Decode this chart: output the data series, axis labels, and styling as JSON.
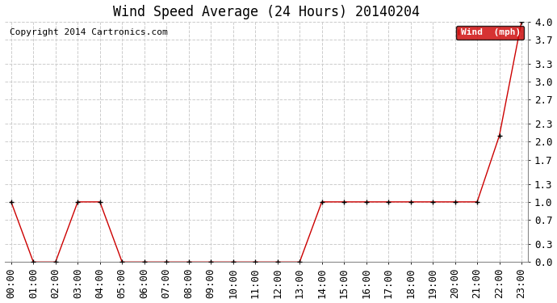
{
  "title": "Wind Speed Average (24 Hours) 20140204",
  "copyright": "Copyright 2014 Cartronics.com",
  "legend_label": "Wind  (mph)",
  "x_labels": [
    "00:00",
    "01:00",
    "02:00",
    "03:00",
    "04:00",
    "05:00",
    "06:00",
    "07:00",
    "08:00",
    "09:00",
    "10:00",
    "11:00",
    "12:00",
    "13:00",
    "14:00",
    "15:00",
    "16:00",
    "17:00",
    "18:00",
    "19:00",
    "20:00",
    "21:00",
    "22:00",
    "23:00"
  ],
  "y_values": [
    1.0,
    0.0,
    0.0,
    1.0,
    1.0,
    0.0,
    0.0,
    0.0,
    0.0,
    0.0,
    0.0,
    0.0,
    0.0,
    0.0,
    1.0,
    1.0,
    1.0,
    1.0,
    1.0,
    1.0,
    1.0,
    1.0,
    2.1,
    4.0
  ],
  "ylim": [
    0.0,
    4.0
  ],
  "yticks": [
    0.0,
    0.3,
    0.7,
    1.0,
    1.3,
    1.7,
    2.0,
    2.3,
    2.7,
    3.0,
    3.3,
    3.7,
    4.0
  ],
  "ytick_labels": [
    "0.0",
    "0.3",
    "0.7",
    "1.0",
    "1.3",
    "1.7",
    "2.0",
    "2.3",
    "2.7",
    "3.0",
    "3.3",
    "3.7",
    "4.0"
  ],
  "line_color": "#cc0000",
  "marker_color": "#000000",
  "legend_bg": "#cc0000",
  "legend_text_color": "#ffffff",
  "bg_color": "#ffffff",
  "grid_color": "#cccccc",
  "title_fontsize": 12,
  "tick_fontsize": 9,
  "copyright_fontsize": 8
}
